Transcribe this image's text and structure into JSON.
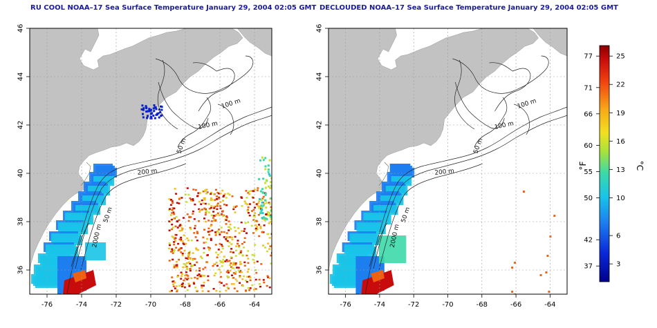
{
  "colors": {
    "land": "#c2c2c2",
    "water": "#ffffff",
    "title": "#1a1a9a",
    "contour": "#222222",
    "grid": "#9a9a9a"
  },
  "axes": {
    "lon_ticks": [
      "-76",
      "-74",
      "-72",
      "-70",
      "-68",
      "-66",
      "-64"
    ],
    "lat_ticks": [
      "36",
      "38",
      "40",
      "42",
      "44",
      "46"
    ]
  },
  "contour_labels": [
    "100 m",
    "100 m",
    "50 m",
    "200 m",
    "50 m",
    "2000 m"
  ],
  "panels": [
    {
      "title": "RU COOL NOAA–17 Sea Surface Temperature January 29, 2004 02:05 GMT"
    },
    {
      "title": "DECLOUDED NOAA–17 Sea Surface Temperature January 29, 2004 02:05 GMT"
    }
  ],
  "colorbar": {
    "f_label": "°F",
    "c_label": "°C",
    "f_ticks": [
      "77",
      "71",
      "66",
      "60",
      "55",
      "50",
      "42",
      "37"
    ],
    "c_ticks": [
      "25",
      "22",
      "19",
      "16",
      "13",
      "10",
      "6",
      "3"
    ]
  }
}
